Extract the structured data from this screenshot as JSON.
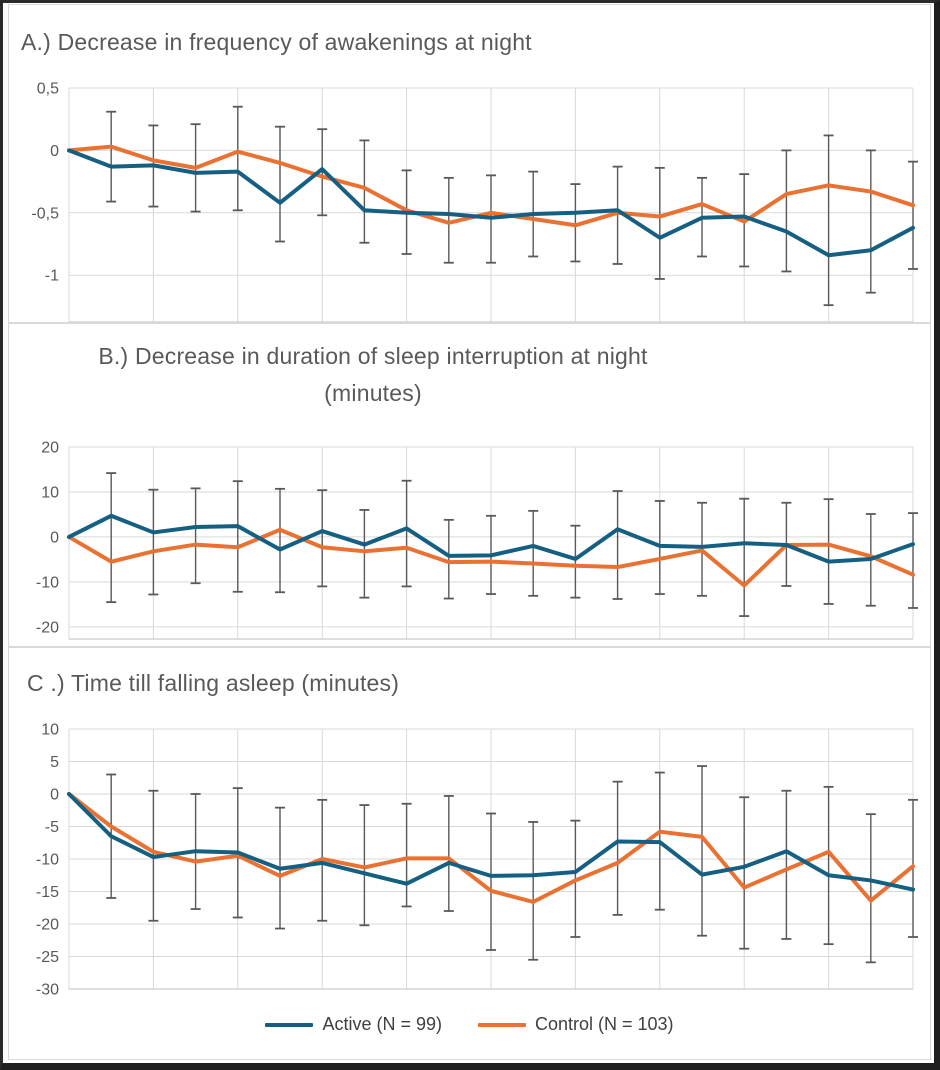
{
  "legend": {
    "active_label": "Active (N = 99)",
    "control_label": "Control (N = 103)"
  },
  "colors": {
    "active": "#156082",
    "control": "#E97132",
    "error_bar": "#595959",
    "gridline": "#D9D9D9",
    "axis_line": "#BFBFBF",
    "title_text": "#595959",
    "tick_text": "#595959",
    "frame": "#1E1E1E"
  },
  "chart_data": [
    {
      "id": "A",
      "type": "line",
      "title": "A.) Decrease in frequency of awakenings at night",
      "xlabel": "",
      "ylabel": "",
      "x_tick_labels": "none (21 unlabeled timepoints)",
      "ylim": [
        -1.375,
        0.5
      ],
      "yticks": [
        0.5,
        0,
        -0.5,
        -1
      ],
      "ytick_labels": [
        "0,5",
        "0",
        "-0,5",
        "-1"
      ],
      "x_gridline_step": 2,
      "grid": true,
      "legend_position": "none",
      "series": [
        {
          "name": "Active (N = 99)",
          "color_key": "active",
          "values": [
            0,
            -0.13,
            -0.12,
            -0.18,
            -0.17,
            -0.42,
            -0.15,
            -0.48,
            -0.5,
            -0.51,
            -0.54,
            -0.51,
            -0.5,
            -0.48,
            -0.7,
            -0.54,
            -0.53,
            -0.65,
            -0.84,
            -0.8,
            -0.62
          ]
        },
        {
          "name": "Control (N = 103)",
          "color_key": "control",
          "values": [
            0,
            0.03,
            -0.08,
            -0.14,
            -0.01,
            -0.1,
            -0.21,
            -0.3,
            -0.48,
            -0.58,
            -0.5,
            -0.55,
            -0.6,
            -0.5,
            -0.53,
            -0.43,
            -0.57,
            -0.35,
            -0.28,
            -0.33,
            -0.44
          ]
        }
      ],
      "error_bars": {
        "top": [
          null,
          0.31,
          0.2,
          0.21,
          0.35,
          0.19,
          0.17,
          0.08,
          -0.16,
          -0.22,
          -0.2,
          -0.17,
          -0.27,
          -0.13,
          -0.14,
          -0.22,
          -0.19,
          0.0,
          0.12,
          0.0,
          -0.09
        ],
        "bottom": [
          null,
          -0.41,
          -0.45,
          -0.49,
          -0.48,
          -0.73,
          -0.52,
          -0.74,
          -0.83,
          -0.9,
          -0.9,
          -0.85,
          -0.89,
          -0.91,
          -1.03,
          -0.85,
          -0.93,
          -0.97,
          -1.24,
          -1.14,
          -0.95
        ]
      }
    },
    {
      "id": "B",
      "type": "line",
      "title": "B.) Decrease in duration of sleep interruption at night (minutes)",
      "title_lines": [
        "B.) Decrease in duration of sleep interruption at night",
        "(minutes)"
      ],
      "xlabel": "",
      "ylabel": "",
      "x_tick_labels": "none (21 unlabeled timepoints)",
      "ylim": [
        -22.7,
        20
      ],
      "yticks": [
        20,
        10,
        0,
        -10,
        -20
      ],
      "ytick_labels": [
        "20",
        "10",
        "0",
        "-10",
        "-20"
      ],
      "x_gridline_step": 2,
      "grid": true,
      "legend_position": "none",
      "series": [
        {
          "name": "Active (N = 99)",
          "color_key": "active",
          "values": [
            0,
            4.7,
            1.0,
            2.2,
            2.4,
            -2.8,
            1.3,
            -1.7,
            1.9,
            -4.2,
            -4.1,
            -2.0,
            -4.9,
            1.7,
            -2.0,
            -2.2,
            -1.4,
            -1.8,
            -5.5,
            -4.9,
            -1.6
          ]
        },
        {
          "name": "Control (N = 103)",
          "color_key": "control",
          "values": [
            0,
            -5.5,
            -3.2,
            -1.7,
            -2.3,
            1.6,
            -2.3,
            -3.2,
            -2.4,
            -5.6,
            -5.5,
            -5.9,
            -6.4,
            -6.7,
            -4.9,
            -3.0,
            -10.8,
            -1.8,
            -1.7,
            -4.3,
            -8.4
          ]
        }
      ],
      "error_bars": {
        "top": [
          null,
          14.2,
          10.5,
          10.8,
          12.4,
          10.7,
          10.4,
          6.0,
          12.5,
          3.8,
          4.7,
          5.8,
          2.5,
          10.2,
          8.0,
          7.6,
          8.5,
          7.6,
          8.4,
          5.1,
          5.3
        ],
        "bottom": [
          null,
          -14.5,
          -12.8,
          -10.3,
          -12.2,
          -12.3,
          -11.0,
          -13.5,
          -11.0,
          -13.7,
          -12.7,
          -13.1,
          -13.5,
          -13.8,
          -12.7,
          -13.1,
          -17.6,
          -10.9,
          -14.9,
          -15.3,
          -15.8
        ]
      }
    },
    {
      "id": "C",
      "type": "line",
      "title": "C .) Time till falling asleep (minutes)",
      "xlabel": "",
      "ylabel": "",
      "x_tick_labels": "none (21 unlabeled timepoints)",
      "ylim": [
        -30,
        10
      ],
      "yticks": [
        10,
        5,
        0,
        -5,
        -10,
        -15,
        -20,
        -25,
        -30
      ],
      "ytick_labels": [
        "10",
        "5",
        "0",
        "-5",
        "-10",
        "-15",
        "-20",
        "-25",
        "-30"
      ],
      "x_gridline_step": 2,
      "grid": true,
      "legend_position": "bottom-center",
      "series": [
        {
          "name": "Active (N = 99)",
          "color_key": "active",
          "values": [
            0,
            -6.5,
            -9.7,
            -8.8,
            -9.0,
            -11.5,
            -10.6,
            -12.2,
            -13.8,
            -10.6,
            -12.6,
            -12.5,
            -12.0,
            -7.3,
            -7.4,
            -12.4,
            -11.2,
            -8.8,
            -12.5,
            -13.3,
            -14.7
          ]
        },
        {
          "name": "Control (N = 103)",
          "color_key": "control",
          "values": [
            0,
            -5.0,
            -8.9,
            -10.4,
            -9.5,
            -12.6,
            -10.0,
            -11.3,
            -9.9,
            -9.9,
            -14.9,
            -16.6,
            -13.3,
            -10.6,
            -5.8,
            -6.6,
            -14.4,
            -11.6,
            -8.9,
            -16.4,
            -11.1
          ]
        }
      ],
      "error_bars": {
        "top": [
          null,
          3.0,
          0.5,
          0.0,
          0.9,
          -2.1,
          -0.9,
          -1.7,
          -1.5,
          -0.3,
          -3.0,
          -4.3,
          -4.1,
          1.9,
          3.3,
          4.3,
          -0.5,
          0.5,
          1.1,
          -3.1,
          -0.9
        ],
        "bottom": [
          null,
          -16.0,
          -19.5,
          -17.7,
          -19.0,
          -20.7,
          -19.5,
          -20.2,
          -17.3,
          -18.0,
          -24.0,
          -25.5,
          -22.0,
          -18.6,
          -17.8,
          -21.8,
          -23.8,
          -22.3,
          -23.1,
          -25.9,
          -22.0
        ]
      }
    }
  ]
}
